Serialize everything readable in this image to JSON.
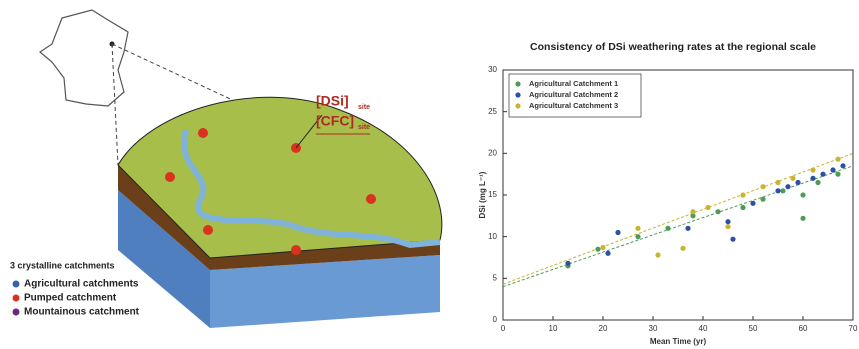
{
  "chart_data": {
    "type": "scatter",
    "title": "Consistency of DSi weathering rates at the regional scale",
    "xlabel": "Mean Time (yr)",
    "ylabel": "DSi (mg L⁻¹)",
    "xlim": [
      0,
      70
    ],
    "xticks": [
      0,
      10,
      20,
      30,
      40,
      50,
      60,
      70
    ],
    "ylim": [
      0,
      30
    ],
    "yticks": [
      0,
      5,
      10,
      15,
      20,
      25,
      30
    ],
    "legend": "upper left",
    "series": [
      {
        "name": "Agricultural Catchment 1",
        "color": "#4f9a5a",
        "x": [
          13,
          19,
          27,
          33,
          38,
          43,
          48,
          52,
          56,
          60,
          60,
          63,
          67
        ],
        "values": [
          6.5,
          8.5,
          10,
          11,
          12.5,
          13,
          13.5,
          14.5,
          15.5,
          15,
          12.2,
          16.5,
          17.5
        ]
      },
      {
        "name": "Agricultural Catchment 2",
        "color": "#2c4fa8",
        "x": [
          13,
          21,
          23,
          37,
          45,
          46,
          50,
          55,
          57,
          59,
          62,
          64,
          66,
          68
        ],
        "values": [
          6.8,
          8,
          10.5,
          11,
          11.8,
          9.7,
          14,
          15.5,
          16,
          16.5,
          17,
          17.5,
          18,
          18.5
        ]
      },
      {
        "name": "Agricultural Catchment 3",
        "color": "#c8b432",
        "x": [
          20,
          27,
          31,
          36,
          38,
          41,
          45,
          48,
          52,
          55,
          58,
          62,
          67
        ],
        "values": [
          8.7,
          11,
          7.8,
          8.6,
          13,
          13.5,
          11.2,
          15,
          16,
          16.5,
          17,
          18,
          19.3
        ]
      }
    ],
    "lines": [
      {
        "color": "#4f9a5a",
        "x": [
          0,
          70
        ],
        "values": [
          4,
          18.5
        ]
      },
      {
        "color": "#c8b432",
        "x": [
          0,
          70
        ],
        "values": [
          4.3,
          20
        ]
      }
    ]
  },
  "diagram": {
    "labels": [
      {
        "text": "[DSi]",
        "sub": "site"
      },
      {
        "text": "[CFC]",
        "sub": "site"
      }
    ],
    "legend": {
      "title": "3 crystalline catchments",
      "items": [
        {
          "label": "Agricultural catchments",
          "color": "#3b5fb0"
        },
        {
          "label": "Pumped catchment",
          "color": "#d9321f"
        },
        {
          "label": "Mountainous catchment",
          "color": "#6a2a80"
        }
      ]
    }
  }
}
